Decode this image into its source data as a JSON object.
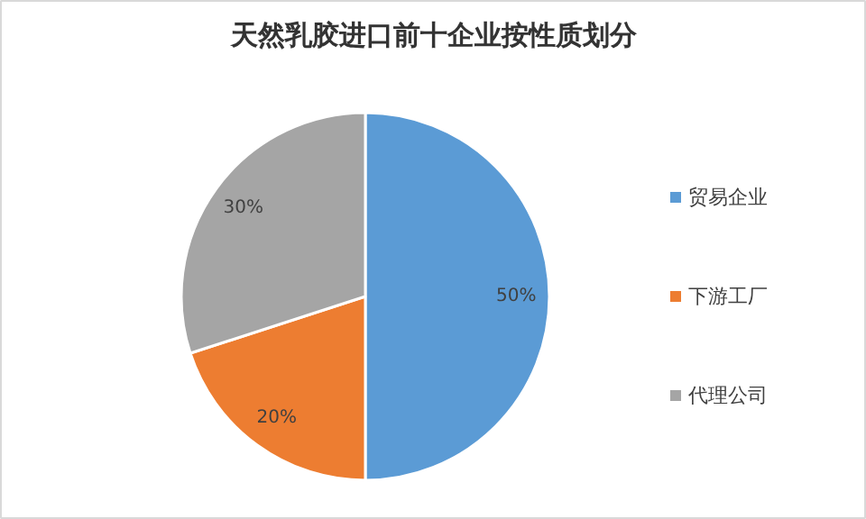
{
  "chart_data": {
    "type": "pie",
    "title": "天然乳胶进口前十企业按性质划分",
    "categories": [
      "贸易企业",
      "下游工厂",
      "代理公司"
    ],
    "values": [
      50,
      20,
      30
    ],
    "colors": [
      "#5b9bd5",
      "#ed7d31",
      "#a5a5a5"
    ],
    "value_labels": [
      "50%",
      "20%",
      "30%"
    ],
    "legend": "right"
  }
}
